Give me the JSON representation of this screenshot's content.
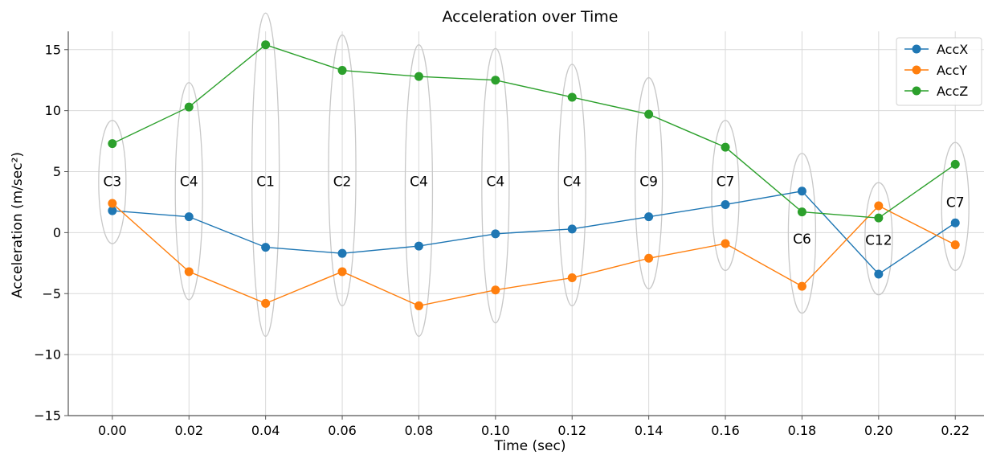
{
  "chart_data": {
    "type": "line",
    "title": "Acceleration over Time",
    "xlabel": "Time (sec)",
    "ylabel": "Acceleration (m/sec²)",
    "x": [
      0.0,
      0.02,
      0.04,
      0.06,
      0.08,
      0.1,
      0.12,
      0.14,
      0.16,
      0.18,
      0.2,
      0.22
    ],
    "x_tick_labels": [
      "0.00",
      "0.02",
      "0.04",
      "0.06",
      "0.08",
      "0.10",
      "0.12",
      "0.14",
      "0.16",
      "0.18",
      "0.20",
      "0.22"
    ],
    "y_ticks": [
      -15,
      -10,
      -5,
      0,
      5,
      10,
      15
    ],
    "y_tick_labels": [
      "−15",
      "−10",
      "−5",
      "0",
      "5",
      "10",
      "15"
    ],
    "xlim": [
      -0.0115,
      0.2275
    ],
    "ylim": [
      -15,
      16.5
    ],
    "grid": true,
    "legend_position": "top-right",
    "series": [
      {
        "name": "AccX",
        "color": "#1f77b4",
        "values": [
          1.8,
          1.3,
          -1.2,
          -1.7,
          -1.1,
          -0.1,
          0.3,
          1.3,
          2.3,
          3.4,
          -3.4,
          0.8
        ]
      },
      {
        "name": "AccY",
        "color": "#ff7f0e",
        "values": [
          2.4,
          -3.2,
          -5.8,
          -3.2,
          -6.0,
          -4.7,
          -3.7,
          -2.1,
          -0.9,
          -4.4,
          2.2,
          -1.0
        ]
      },
      {
        "name": "AccZ",
        "color": "#2ca02c",
        "values": [
          7.3,
          10.3,
          15.4,
          13.3,
          12.8,
          12.5,
          11.1,
          9.7,
          7.0,
          1.7,
          1.2,
          5.6
        ]
      }
    ],
    "clusters": [
      {
        "x": 0.0,
        "label": "C3",
        "y_top": 9.2,
        "y_bottom": -0.9,
        "label_y": 4.2
      },
      {
        "x": 0.02,
        "label": "C4",
        "y_top": 12.3,
        "y_bottom": -5.5,
        "label_y": 4.2
      },
      {
        "x": 0.04,
        "label": "C1",
        "y_top": 18.0,
        "y_bottom": -8.5,
        "label_y": 4.2
      },
      {
        "x": 0.06,
        "label": "C2",
        "y_top": 16.2,
        "y_bottom": -6.0,
        "label_y": 4.2
      },
      {
        "x": 0.08,
        "label": "C4",
        "y_top": 15.4,
        "y_bottom": -8.5,
        "label_y": 4.2
      },
      {
        "x": 0.1,
        "label": "C4",
        "y_top": 15.1,
        "y_bottom": -7.4,
        "label_y": 4.2
      },
      {
        "x": 0.12,
        "label": "C4",
        "y_top": 13.8,
        "y_bottom": -6.0,
        "label_y": 4.2
      },
      {
        "x": 0.14,
        "label": "C9",
        "y_top": 12.7,
        "y_bottom": -4.6,
        "label_y": 4.2
      },
      {
        "x": 0.16,
        "label": "C7",
        "y_top": 9.2,
        "y_bottom": -3.1,
        "label_y": 4.2
      },
      {
        "x": 0.18,
        "label": "C6",
        "y_top": 6.5,
        "y_bottom": -6.6,
        "label_y": -0.5
      },
      {
        "x": 0.2,
        "label": "C12",
        "y_top": 4.1,
        "y_bottom": -5.1,
        "label_y": -0.6
      },
      {
        "x": 0.22,
        "label": "C7",
        "y_top": 7.4,
        "y_bottom": -3.1,
        "label_y": 2.5
      }
    ]
  }
}
